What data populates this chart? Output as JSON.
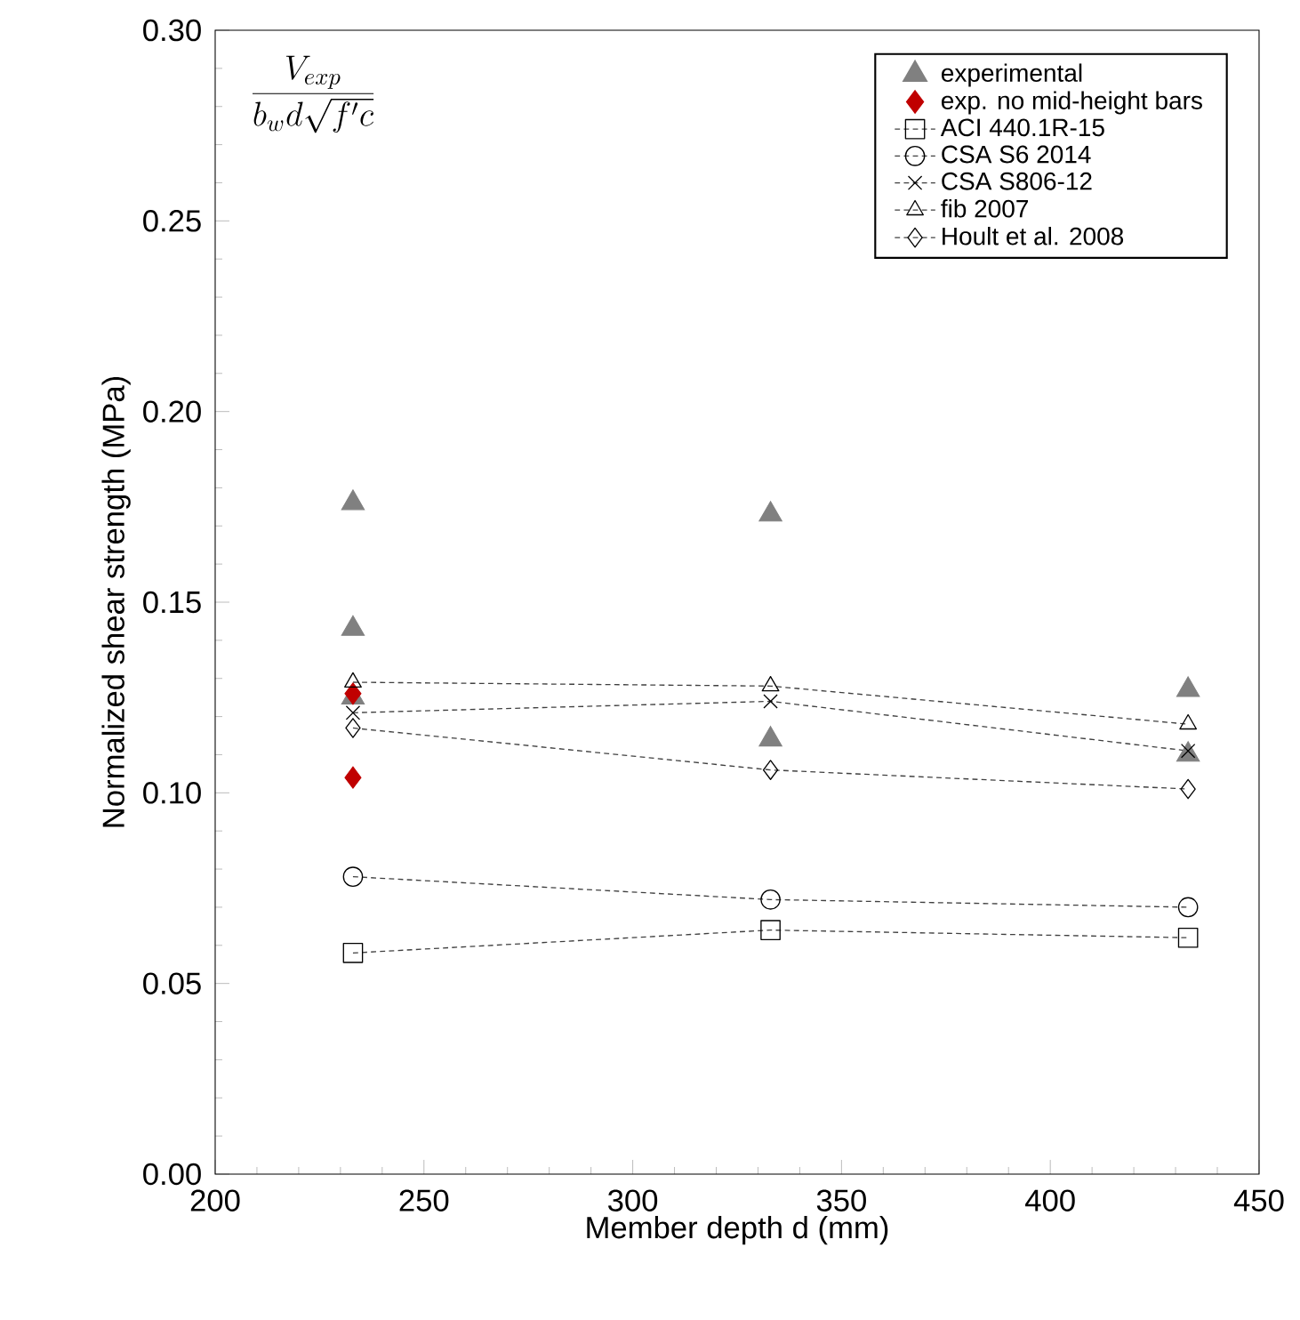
{
  "chart_data": {
    "type": "scatter",
    "xlabel": "Member depth d (mm)",
    "ylabel": "Normalized shear strength (MPa)",
    "annotations": [
      "\\frac{V_{exp}}{b_{w}d\\sqrt{f'c}}"
    ],
    "xlim": [
      200,
      450
    ],
    "xticks": [
      200,
      250,
      300,
      350,
      400,
      450
    ],
    "ylim": [
      0,
      0.3
    ],
    "yticks": [
      {
        "value": 0,
        "label": "0.00"
      },
      {
        "value": 0.05,
        "label": "0.05"
      },
      {
        "value": 0.1,
        "label": "0.10"
      },
      {
        "value": 0.15,
        "label": "0.15"
      },
      {
        "value": 0.2,
        "label": "0.20"
      },
      {
        "value": 0.25,
        "label": "0.25"
      },
      {
        "value": 0.3,
        "label": "0.30"
      }
    ],
    "grid": false,
    "legend": "top right",
    "series": [
      {
        "name": "experimental",
        "marker": "triangle",
        "color": "#808080",
        "x": [
          233,
          233,
          233,
          333,
          333,
          433,
          433
        ],
        "values": [
          0.176,
          0.143,
          0.125,
          0.173,
          0.114,
          0.127,
          0.11
        ]
      },
      {
        "name": "exp. no mid-height bars",
        "marker": "diamond",
        "color": "#c00000",
        "x": [
          233,
          233
        ],
        "values": [
          0.126,
          0.104
        ]
      },
      {
        "name": "ACI 440.1R-15",
        "type": "line",
        "marker": "square",
        "line_style": "dashed",
        "color": "#000000",
        "x": [
          233,
          333,
          433
        ],
        "values": [
          0.058,
          0.064,
          0.062
        ]
      },
      {
        "name": "CSA S6 2014",
        "type": "line",
        "marker": "circle",
        "line_style": "dashed",
        "color": "#000000",
        "x": [
          233,
          333,
          433
        ],
        "values": [
          0.078,
          0.072,
          0.07
        ]
      },
      {
        "name": "CSA S806-12",
        "type": "line",
        "marker": "cross",
        "line_style": "dashed",
        "color": "#000000",
        "x": [
          233,
          333,
          433
        ],
        "values": [
          0.121,
          0.124,
          0.111
        ]
      },
      {
        "name": "fib 2007",
        "type": "line",
        "marker": "triangle",
        "line_style": "dashed",
        "color": "#000000",
        "x": [
          233,
          333,
          433
        ],
        "values": [
          0.129,
          0.128,
          0.118
        ]
      },
      {
        "name": "Hoult et al. 2008",
        "type": "line",
        "marker": "diamond",
        "line_style": "dashed",
        "color": "#000000",
        "x": [
          233,
          333,
          433
        ],
        "values": [
          0.117,
          0.106,
          0.101
        ]
      }
    ]
  }
}
